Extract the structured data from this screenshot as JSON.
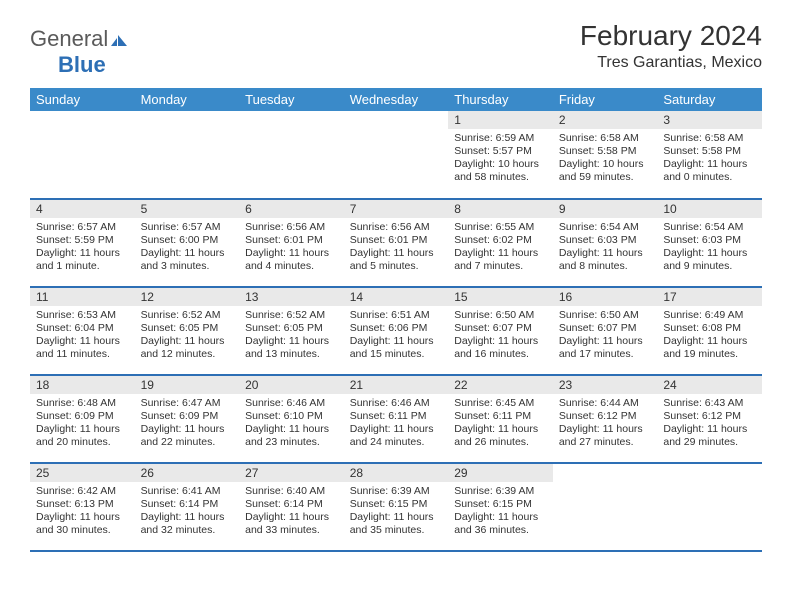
{
  "logo": {
    "general": "General",
    "blue": "Blue"
  },
  "header": {
    "title": "February 2024",
    "subtitle": "Tres Garantias, Mexico"
  },
  "colors": {
    "header_bg": "#3a8ac9",
    "header_text": "#ffffff",
    "rule": "#2d6fb5",
    "daybar_bg": "#e9e9e9",
    "text": "#333333",
    "logo_gray": "#5a5a5a",
    "logo_blue": "#2d6fb5"
  },
  "typography": {
    "title_fontsize": 28,
    "subtitle_fontsize": 16,
    "dow_fontsize": 13,
    "body_fontsize": 10.5
  },
  "dow": [
    "Sunday",
    "Monday",
    "Tuesday",
    "Wednesday",
    "Thursday",
    "Friday",
    "Saturday"
  ],
  "weeks": [
    [
      {
        "blank": true
      },
      {
        "blank": true
      },
      {
        "blank": true
      },
      {
        "blank": true
      },
      {
        "n": "1",
        "sunrise": "Sunrise: 6:59 AM",
        "sunset": "Sunset: 5:57 PM",
        "daylight": "Daylight: 10 hours and 58 minutes."
      },
      {
        "n": "2",
        "sunrise": "Sunrise: 6:58 AM",
        "sunset": "Sunset: 5:58 PM",
        "daylight": "Daylight: 10 hours and 59 minutes."
      },
      {
        "n": "3",
        "sunrise": "Sunrise: 6:58 AM",
        "sunset": "Sunset: 5:58 PM",
        "daylight": "Daylight: 11 hours and 0 minutes."
      }
    ],
    [
      {
        "n": "4",
        "sunrise": "Sunrise: 6:57 AM",
        "sunset": "Sunset: 5:59 PM",
        "daylight": "Daylight: 11 hours and 1 minute."
      },
      {
        "n": "5",
        "sunrise": "Sunrise: 6:57 AM",
        "sunset": "Sunset: 6:00 PM",
        "daylight": "Daylight: 11 hours and 3 minutes."
      },
      {
        "n": "6",
        "sunrise": "Sunrise: 6:56 AM",
        "sunset": "Sunset: 6:01 PM",
        "daylight": "Daylight: 11 hours and 4 minutes."
      },
      {
        "n": "7",
        "sunrise": "Sunrise: 6:56 AM",
        "sunset": "Sunset: 6:01 PM",
        "daylight": "Daylight: 11 hours and 5 minutes."
      },
      {
        "n": "8",
        "sunrise": "Sunrise: 6:55 AM",
        "sunset": "Sunset: 6:02 PM",
        "daylight": "Daylight: 11 hours and 7 minutes."
      },
      {
        "n": "9",
        "sunrise": "Sunrise: 6:54 AM",
        "sunset": "Sunset: 6:03 PM",
        "daylight": "Daylight: 11 hours and 8 minutes."
      },
      {
        "n": "10",
        "sunrise": "Sunrise: 6:54 AM",
        "sunset": "Sunset: 6:03 PM",
        "daylight": "Daylight: 11 hours and 9 minutes."
      }
    ],
    [
      {
        "n": "11",
        "sunrise": "Sunrise: 6:53 AM",
        "sunset": "Sunset: 6:04 PM",
        "daylight": "Daylight: 11 hours and 11 minutes."
      },
      {
        "n": "12",
        "sunrise": "Sunrise: 6:52 AM",
        "sunset": "Sunset: 6:05 PM",
        "daylight": "Daylight: 11 hours and 12 minutes."
      },
      {
        "n": "13",
        "sunrise": "Sunrise: 6:52 AM",
        "sunset": "Sunset: 6:05 PM",
        "daylight": "Daylight: 11 hours and 13 minutes."
      },
      {
        "n": "14",
        "sunrise": "Sunrise: 6:51 AM",
        "sunset": "Sunset: 6:06 PM",
        "daylight": "Daylight: 11 hours and 15 minutes."
      },
      {
        "n": "15",
        "sunrise": "Sunrise: 6:50 AM",
        "sunset": "Sunset: 6:07 PM",
        "daylight": "Daylight: 11 hours and 16 minutes."
      },
      {
        "n": "16",
        "sunrise": "Sunrise: 6:50 AM",
        "sunset": "Sunset: 6:07 PM",
        "daylight": "Daylight: 11 hours and 17 minutes."
      },
      {
        "n": "17",
        "sunrise": "Sunrise: 6:49 AM",
        "sunset": "Sunset: 6:08 PM",
        "daylight": "Daylight: 11 hours and 19 minutes."
      }
    ],
    [
      {
        "n": "18",
        "sunrise": "Sunrise: 6:48 AM",
        "sunset": "Sunset: 6:09 PM",
        "daylight": "Daylight: 11 hours and 20 minutes."
      },
      {
        "n": "19",
        "sunrise": "Sunrise: 6:47 AM",
        "sunset": "Sunset: 6:09 PM",
        "daylight": "Daylight: 11 hours and 22 minutes."
      },
      {
        "n": "20",
        "sunrise": "Sunrise: 6:46 AM",
        "sunset": "Sunset: 6:10 PM",
        "daylight": "Daylight: 11 hours and 23 minutes."
      },
      {
        "n": "21",
        "sunrise": "Sunrise: 6:46 AM",
        "sunset": "Sunset: 6:11 PM",
        "daylight": "Daylight: 11 hours and 24 minutes."
      },
      {
        "n": "22",
        "sunrise": "Sunrise: 6:45 AM",
        "sunset": "Sunset: 6:11 PM",
        "daylight": "Daylight: 11 hours and 26 minutes."
      },
      {
        "n": "23",
        "sunrise": "Sunrise: 6:44 AM",
        "sunset": "Sunset: 6:12 PM",
        "daylight": "Daylight: 11 hours and 27 minutes."
      },
      {
        "n": "24",
        "sunrise": "Sunrise: 6:43 AM",
        "sunset": "Sunset: 6:12 PM",
        "daylight": "Daylight: 11 hours and 29 minutes."
      }
    ],
    [
      {
        "n": "25",
        "sunrise": "Sunrise: 6:42 AM",
        "sunset": "Sunset: 6:13 PM",
        "daylight": "Daylight: 11 hours and 30 minutes."
      },
      {
        "n": "26",
        "sunrise": "Sunrise: 6:41 AM",
        "sunset": "Sunset: 6:14 PM",
        "daylight": "Daylight: 11 hours and 32 minutes."
      },
      {
        "n": "27",
        "sunrise": "Sunrise: 6:40 AM",
        "sunset": "Sunset: 6:14 PM",
        "daylight": "Daylight: 11 hours and 33 minutes."
      },
      {
        "n": "28",
        "sunrise": "Sunrise: 6:39 AM",
        "sunset": "Sunset: 6:15 PM",
        "daylight": "Daylight: 11 hours and 35 minutes."
      },
      {
        "n": "29",
        "sunrise": "Sunrise: 6:39 AM",
        "sunset": "Sunset: 6:15 PM",
        "daylight": "Daylight: 11 hours and 36 minutes."
      },
      {
        "blank": true
      },
      {
        "blank": true
      }
    ]
  ]
}
